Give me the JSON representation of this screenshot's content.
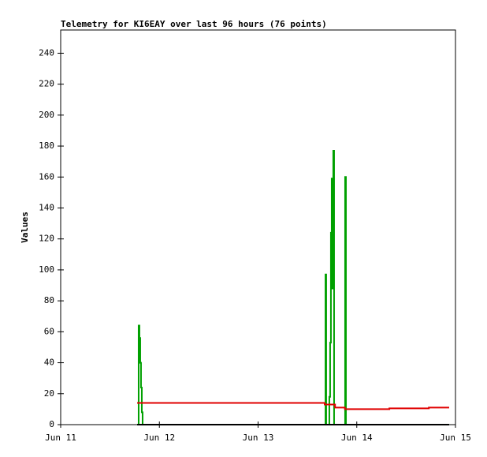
{
  "chart_data": {
    "type": "line",
    "title": "Telemetry for KI6EAY over last 96 hours (76 points)",
    "y_label": "Values",
    "step": true,
    "xlim": [
      0,
      4
    ],
    "xticks": [
      {
        "value": 0,
        "label": "Jun 11"
      },
      {
        "value": 1,
        "label": "Jun 12"
      },
      {
        "value": 2,
        "label": "Jun 13"
      },
      {
        "value": 3,
        "label": "Jun 14"
      },
      {
        "value": 4,
        "label": "Jun 15"
      }
    ],
    "ylim": [
      0,
      255
    ],
    "yticks": [
      0,
      20,
      40,
      60,
      80,
      100,
      120,
      140,
      160,
      180,
      200,
      220,
      240
    ],
    "series": [
      {
        "color": "#00a000",
        "x": [
          0.775,
          0.79,
          0.798,
          0.806,
          0.814,
          0.822,
          0.83,
          2.675,
          2.683,
          2.69,
          2.722,
          2.73,
          2.738,
          2.746,
          2.754,
          2.762,
          2.77,
          2.874,
          2.882,
          2.89,
          3.936
        ],
        "values": [
          0,
          64,
          56,
          40,
          24,
          8,
          0,
          0,
          97,
          0,
          18,
          53,
          124,
          159,
          88,
          177,
          0,
          0,
          160,
          0,
          0
        ]
      },
      {
        "color": "#e00000",
        "x": [
          0.775,
          2.675,
          2.78,
          2.88,
          3.33,
          3.73,
          3.936
        ],
        "values": [
          14,
          13,
          11,
          10,
          10.5,
          11,
          11
        ]
      },
      {
        "color": "#000000",
        "x": [
          0.775,
          3.936
        ],
        "values": [
          0,
          0
        ]
      }
    ]
  }
}
